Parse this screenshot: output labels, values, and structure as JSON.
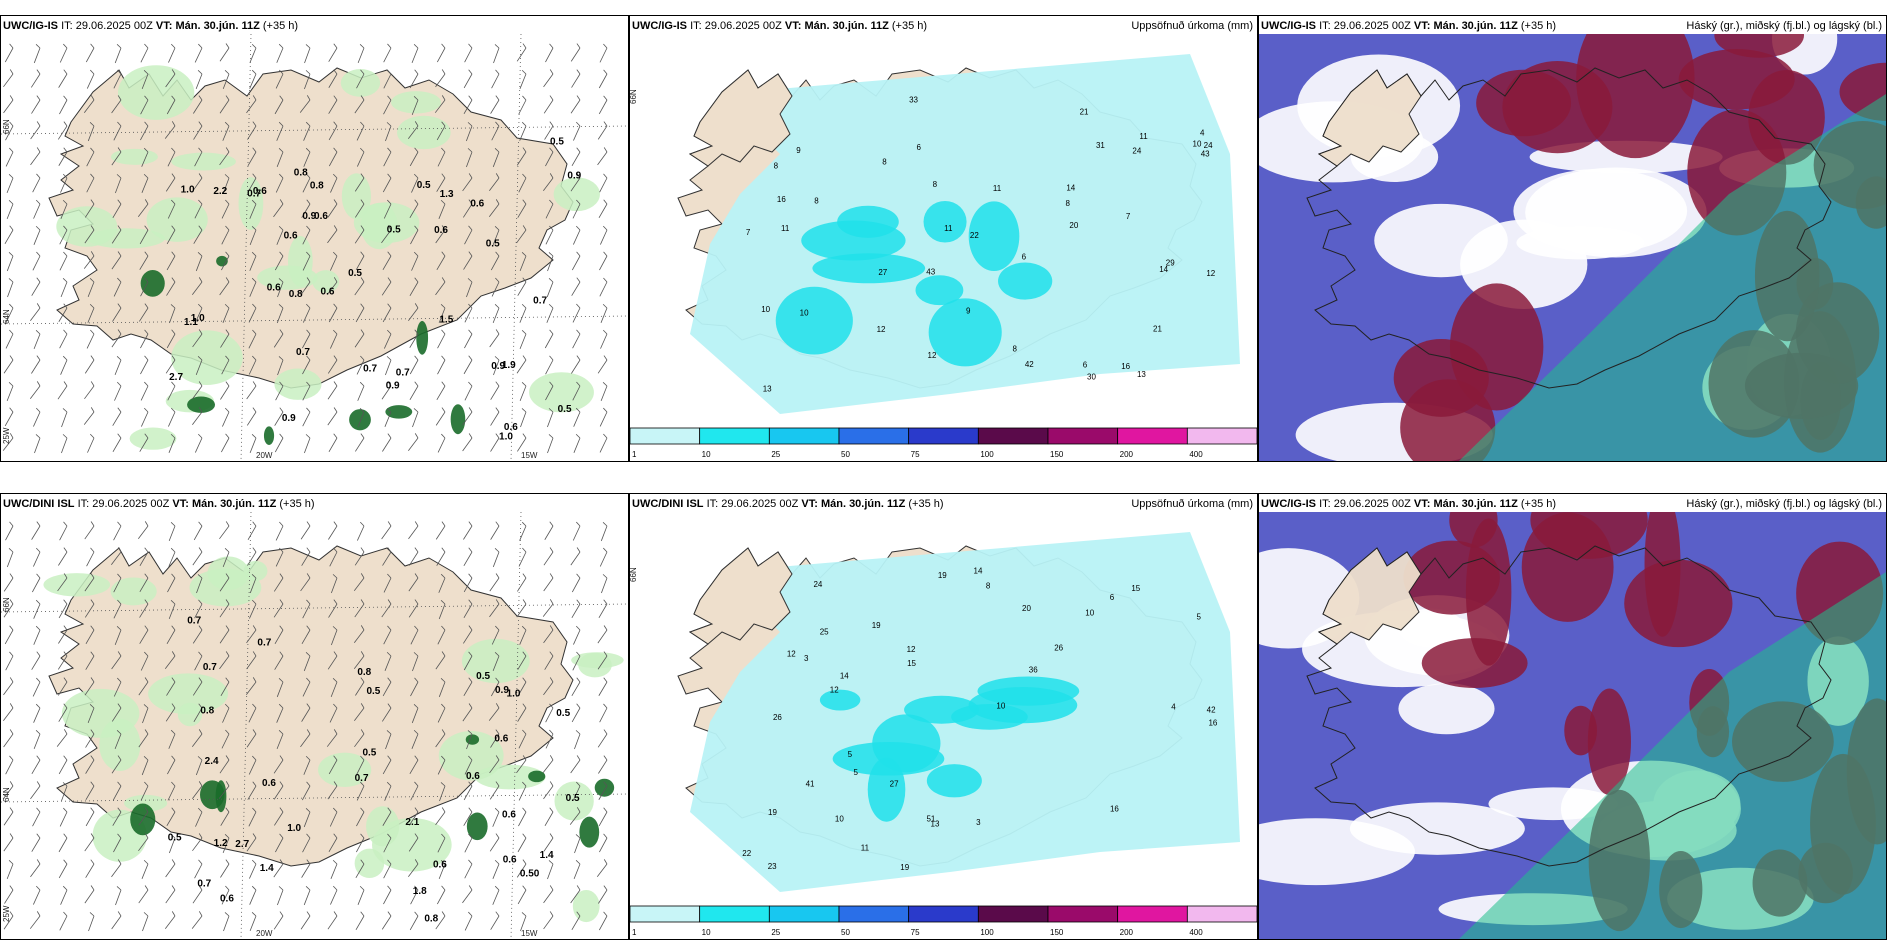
{
  "colors": {
    "land": "#eedfcc",
    "precip_light": "#b8f2f5",
    "precip_mid": "#20e0ea",
    "cloud_low": "#5a5fc8",
    "cloud_high": "#8a1a3a",
    "cloud_mid": "#1fbf8a",
    "green_light": "#c9f0c2",
    "green_dark": "#1a6b2a"
  },
  "panels": [
    {
      "model": "UWC/IG-IS",
      "it_label": "IT:",
      "it": "29.06.2025 00Z",
      "vt_label": "VT:",
      "vt": "Mán. 30.jún. 11Z",
      "lead": "(+35 h)",
      "right_title": "",
      "kind": "wind",
      "axis": {
        "lat": [
          "66N",
          "64N",
          "25W"
        ],
        "lon": [
          "20W",
          "15W"
        ]
      },
      "values": [
        "0.7",
        "0.7",
        "0.5",
        "0.7",
        "0.6",
        "0.5",
        "0.6",
        "0.9",
        "0.5",
        "0.6",
        "1.0",
        "0.6",
        "0.7",
        "0.9",
        "0.5",
        "0.9",
        "1.9",
        "1.5",
        "2.7",
        "0.9",
        "0.5",
        "0.8",
        "0.9",
        "0.6",
        "2.2",
        "0.6",
        "0.8",
        "1.3",
        "1.0",
        "1.0",
        "0.8",
        "1.1",
        "0.6",
        "0.6",
        "0.5",
        "0.7"
      ]
    },
    {
      "model": "UWC/IG-IS",
      "it_label": "IT:",
      "it": "29.06.2025 00Z",
      "vt_label": "VT:",
      "vt": "Mán. 30.jún. 11Z",
      "lead": "(+35 h)",
      "right_title": "Uppsöfnuð úrkoma (mm)",
      "kind": "precip",
      "axis": {
        "lat": [
          "66N"
        ],
        "lon": []
      },
      "values": [
        "14",
        "13",
        "7",
        "8",
        "6",
        "4",
        "7",
        "9",
        "10",
        "8",
        "8",
        "6",
        "8",
        "8",
        "6",
        "11",
        "10",
        "11",
        "11",
        "14",
        "27",
        "31",
        "20",
        "43",
        "16",
        "21",
        "22",
        "24",
        "12",
        "29",
        "33",
        "30",
        "43",
        "24",
        "12",
        "10",
        "13",
        "42",
        "11",
        "21",
        "8",
        "9",
        "16",
        "12"
      ],
      "colorbar": [
        "1",
        "10",
        "25",
        "50",
        "75",
        "100",
        "150",
        "200",
        "400"
      ]
    },
    {
      "model": "UWC/IG-IS",
      "it_label": "IT:",
      "it": "29.06.2025 00Z",
      "vt_label": "VT:",
      "vt": "Mán. 30.jún. 11Z",
      "lead": "(+35 h)",
      "right_title": "Háský (gr.), miðský (fj.bl.) og lágský (bl.)",
      "kind": "cloud"
    },
    {
      "model": "UWC/DINI ISL",
      "it_label": "IT:",
      "it": "29.06.2025 00Z",
      "vt_label": "VT:",
      "vt": "Mán. 30.jún. 11Z",
      "lead": "(+35 h)",
      "right_title": "",
      "kind": "wind",
      "axis": {
        "lat": [
          "66N",
          "64N",
          "25W"
        ],
        "lon": [
          "20W",
          "15W"
        ]
      },
      "values": [
        "1.4",
        "0.6",
        "0.8",
        "0.5",
        "0.50",
        "0.5",
        "0.6",
        "0.5",
        "0.7",
        "0.6",
        "0.6",
        "0.7",
        "0.8",
        "0.7",
        "0.7",
        "0.7",
        "0.6",
        "0.5",
        "0.8",
        "0.5",
        "0.5",
        "0.6",
        "1.4",
        "1.0",
        "2.1",
        "1.8",
        "0.6",
        "1.2",
        "2.7",
        "0.9",
        "2.4",
        "1.0"
      ]
    },
    {
      "model": "UWC/DINI ISL",
      "it_label": "IT:",
      "it": "29.06.2025 00Z",
      "vt_label": "VT:",
      "vt": "Mán. 30.jún. 11Z",
      "lead": "(+35 h)",
      "right_title": "Uppsöfnuð úrkoma (mm)",
      "kind": "precip",
      "axis": {
        "lat": [
          "66N"
        ],
        "lon": []
      },
      "values": [
        "3",
        "4",
        "5",
        "5",
        "6",
        "3",
        "5",
        "10",
        "12",
        "19",
        "14",
        "12",
        "19",
        "22",
        "20",
        "16",
        "23",
        "25",
        "19",
        "42",
        "51",
        "16",
        "41",
        "36",
        "26",
        "15",
        "24",
        "27",
        "13",
        "15",
        "26",
        "12",
        "10",
        "11",
        "8",
        "19",
        "14",
        "10"
      ],
      "colorbar": [
        "1",
        "10",
        "25",
        "50",
        "75",
        "100",
        "150",
        "200",
        "400"
      ]
    },
    {
      "model": "UWC/IG-IS",
      "it_label": "IT:",
      "it": "29.06.2025 00Z",
      "vt_label": "VT:",
      "vt": "Mán. 30.jún. 11Z",
      "lead": "(+35 h)",
      "right_title": "Háský (gr.), miðský (fj.bl.) og lágský (bl.)",
      "kind": "cloud"
    }
  ]
}
